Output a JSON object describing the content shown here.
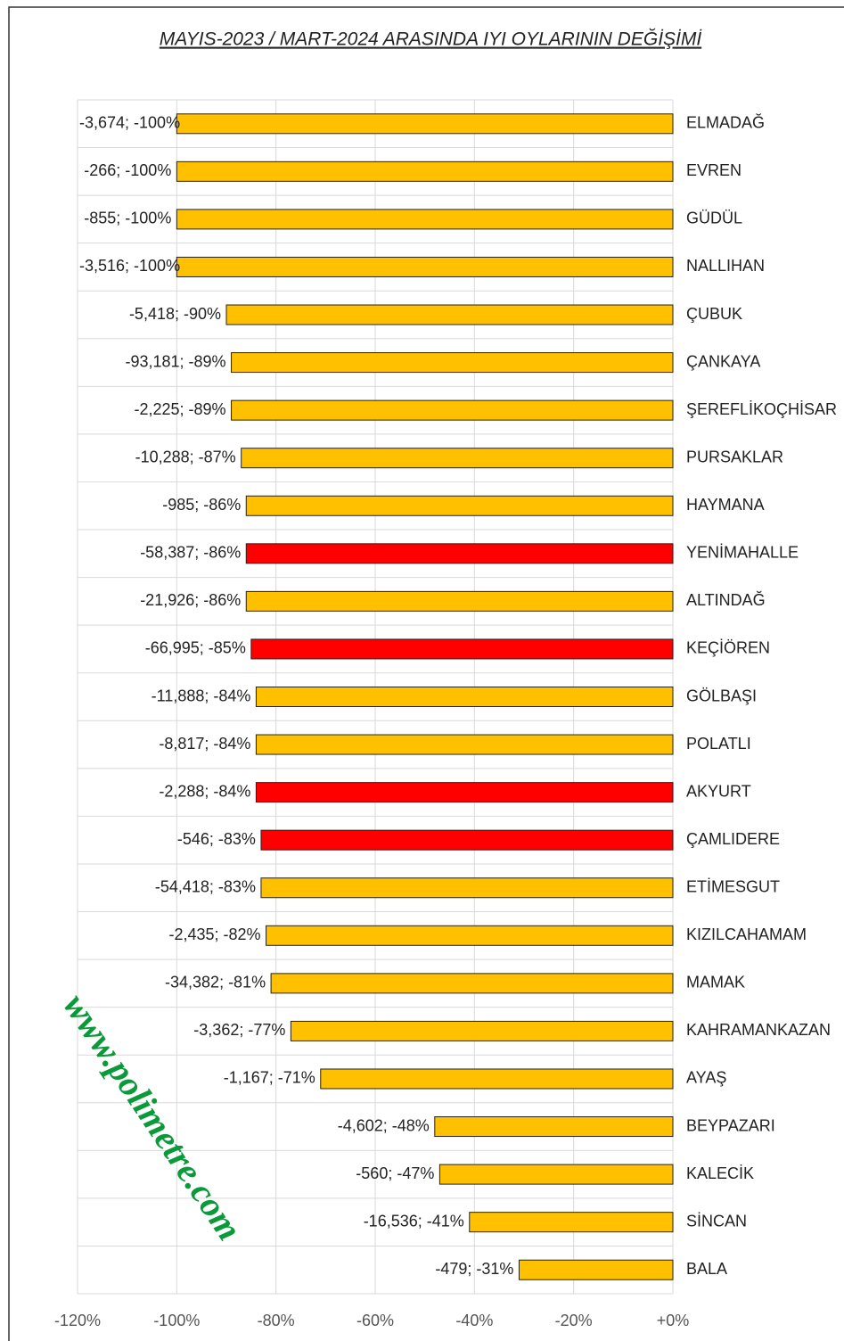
{
  "chart_data": {
    "type": "hbar",
    "title": "MAYIS-2023 / MART-2024 ARASINDA IYI OYLARININ DEĞİŞİMİ",
    "watermark": "www.polimetre.com",
    "categories": [
      "ELMADAĞ",
      "EVREN",
      "GÜDÜL",
      "NALLIHAN",
      "ÇUBUK",
      "ÇANKAYA",
      "ŞEREFLİKOÇHİSAR",
      "PURSAKLAR",
      "HAYMANA",
      "YENİMAHALLE",
      "ALTINDAĞ",
      "KEÇİÖREN",
      "GÖLBAŞI",
      "POLATLI",
      "AKYURT",
      "ÇAMLIDERE",
      "ETİMESGUT",
      "KIZILCAHAMAM",
      "MAMAK",
      "KAHRAMANKAZAN",
      "AYAŞ",
      "BEYPAZARI",
      "KALECİK",
      "SİNCAN",
      "BALA"
    ],
    "values": [
      -100,
      -100,
      -100,
      -100,
      -90,
      -89,
      -89,
      -87,
      -86,
      -86,
      -86,
      -85,
      -84,
      -84,
      -84,
      -83,
      -83,
      -82,
      -81,
      -77,
      -71,
      -48,
      -47,
      -41,
      -31
    ],
    "value_labels": [
      "-3,674; -100%",
      "-266; -100%",
      "-855; -100%",
      "-3,516; -100%",
      "-5,418; -90%",
      "-93,181; -89%",
      "-2,225; -89%",
      "-10,288; -87%",
      "-985; -86%",
      "-58,387; -86%",
      "-21,926; -86%",
      "-66,995; -85%",
      "-11,888; -84%",
      "-8,817; -84%",
      "-2,288; -84%",
      "-546; -83%",
      "-54,418; -83%",
      "-2,435; -82%",
      "-34,382; -81%",
      "-3,362; -77%",
      "-1,167; -71%",
      "-4,602; -48%",
      "-560; -47%",
      "-16,536; -41%",
      "-479; -31%"
    ],
    "colors": [
      "#ffc000",
      "#ffc000",
      "#ffc000",
      "#ffc000",
      "#ffc000",
      "#ffc000",
      "#ffc000",
      "#ffc000",
      "#ffc000",
      "#ff0000",
      "#ffc000",
      "#ff0000",
      "#ffc000",
      "#ffc000",
      "#ff0000",
      "#ff0000",
      "#ffc000",
      "#ffc000",
      "#ffc000",
      "#ffc000",
      "#ffc000",
      "#ffc000",
      "#ffc000",
      "#ffc000",
      "#ffc000"
    ],
    "xlim": [
      -120,
      0
    ],
    "xticks": [
      {
        "value": -120,
        "label": "-120%"
      },
      {
        "value": -100,
        "label": "-100%"
      },
      {
        "value": -80,
        "label": "-80%"
      },
      {
        "value": -60,
        "label": "-60%"
      },
      {
        "value": -40,
        "label": "-40%"
      },
      {
        "value": -20,
        "label": "-20%"
      },
      {
        "value": 0,
        "label": "+0%"
      }
    ],
    "grid": true
  }
}
